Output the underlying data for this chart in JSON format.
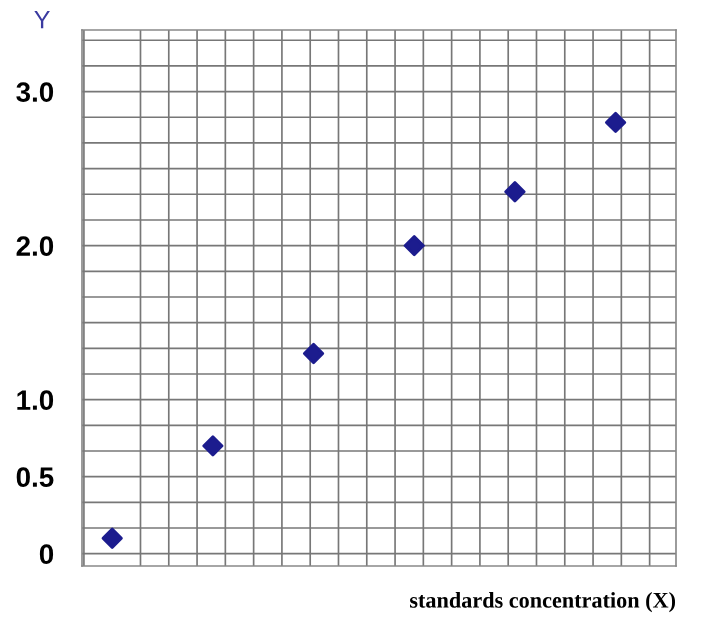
{
  "chart_data": {
    "type": "scatter",
    "xlabel": "standards concentration (X)",
    "ylabel": "Y",
    "categories": [
      null,
      null,
      null,
      null,
      null,
      null
    ],
    "series": [
      {
        "color": "#1c1c8e",
        "values": [
          0.1,
          0.7,
          1.3,
          2.0,
          2.35,
          2.8
        ]
      }
    ],
    "ylim": [
      -0.08,
      3.4
    ],
    "yticks": [
      0,
      {
        "value": 0.5,
        "label": "0.5"
      },
      {
        "value": 1.0,
        "label": "1.0"
      },
      {
        "value": 2.0,
        "label": "2.0"
      },
      {
        "value": 3.0,
        "label": "3.0"
      }
    ],
    "tick_labels": "y",
    "grid": true,
    "marker": "diamond"
  }
}
